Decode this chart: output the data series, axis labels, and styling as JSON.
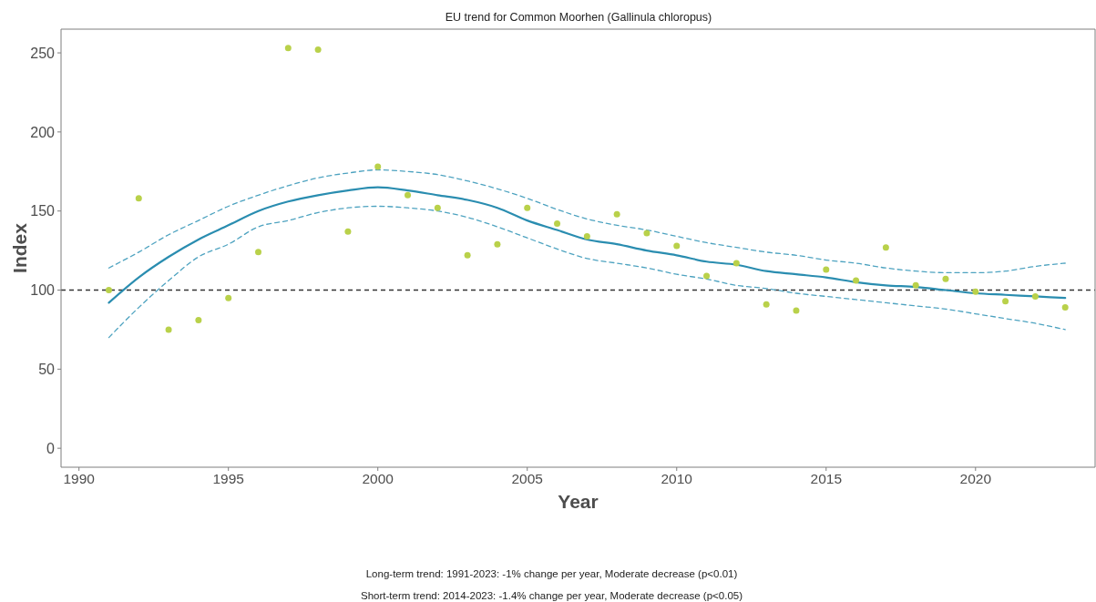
{
  "chart_data": {
    "type": "line",
    "title": "EU trend for Common Moorhen (Gallinula chloropus)",
    "xlabel": "Year",
    "ylabel": "Index",
    "annotations": [
      "Long-term trend: 1991-2023: -1% change per year, Moderate decrease (p<0.01)",
      "Short-term trend: 2014-2023: -1.4% change per year, Moderate decrease (p<0.05)"
    ],
    "x": [
      1991,
      1992,
      1993,
      1994,
      1995,
      1996,
      1997,
      1998,
      1999,
      2000,
      2001,
      2002,
      2003,
      2004,
      2005,
      2006,
      2007,
      2008,
      2009,
      2010,
      2011,
      2012,
      2013,
      2014,
      2015,
      2016,
      2017,
      2018,
      2019,
      2020,
      2021,
      2022,
      2023
    ],
    "series": [
      {
        "type": "scatter",
        "color": "#b9d14a",
        "marker": "circle",
        "values": [
          100,
          158,
          75,
          81,
          95,
          124,
          253,
          252,
          137,
          178,
          160,
          152,
          122,
          129,
          152,
          142,
          134,
          148,
          136,
          128,
          109,
          117,
          91,
          87,
          113,
          106,
          127,
          103,
          107,
          99,
          93,
          96,
          89
        ]
      },
      {
        "color": "#2a8db0",
        "line_style": "solid",
        "marker": "none",
        "values": [
          92,
          108,
          121,
          132,
          141,
          150,
          156,
          160,
          163,
          165,
          163,
          160,
          157,
          152,
          144,
          138,
          132,
          129,
          125,
          122,
          118,
          116,
          112,
          110,
          108,
          105,
          103,
          102,
          100,
          98,
          97,
          96,
          95
        ]
      },
      {
        "color": "#4ea3c0",
        "line_style": "dashed",
        "marker": "none",
        "values": [
          114,
          124,
          135,
          144,
          153,
          160,
          166,
          171,
          174,
          176,
          175,
          173,
          169,
          164,
          158,
          151,
          145,
          141,
          138,
          134,
          130,
          127,
          124,
          122,
          119,
          117,
          114,
          112,
          111,
          111,
          112,
          115,
          117
        ]
      },
      {
        "color": "#4ea3c0",
        "line_style": "dashed",
        "marker": "none",
        "values": [
          70,
          89,
          106,
          121,
          129,
          140,
          144,
          149,
          152,
          153,
          152,
          150,
          146,
          140,
          133,
          126,
          120,
          117,
          114,
          110,
          107,
          103,
          101,
          98,
          96,
          94,
          92,
          90,
          88,
          85,
          82,
          79,
          75
        ]
      }
    ],
    "xlim": [
      1989.4,
      2024
    ],
    "xticks": [
      1990,
      1995,
      2000,
      2005,
      2010,
      2015,
      2020
    ],
    "ylim": [
      -12,
      265
    ],
    "yticks": [
      0,
      50,
      100,
      150,
      200,
      250
    ],
    "ref_lines": [
      {
        "axis": "y",
        "value": 100,
        "color": "#333333",
        "line_style": "dashed"
      }
    ]
  }
}
